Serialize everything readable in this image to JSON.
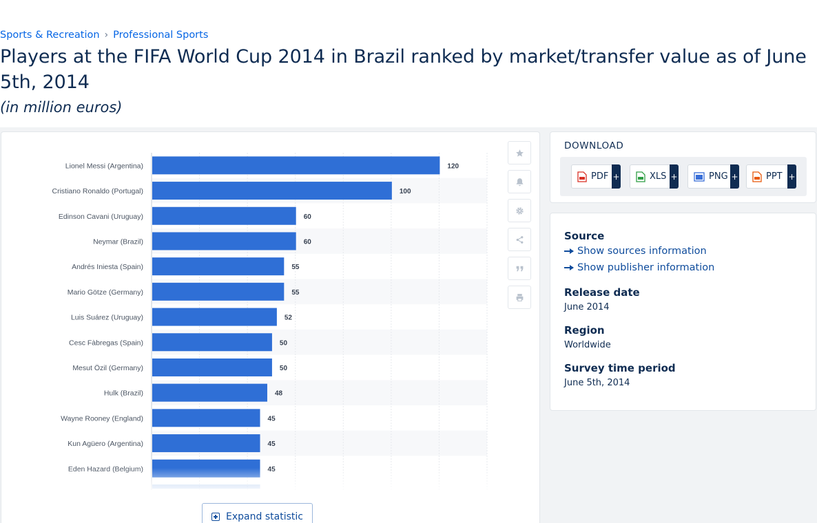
{
  "breadcrumb": [
    "Sports & Recreation",
    "Professional Sports"
  ],
  "title": "Players at the FIFA World Cup 2014 in Brazil ranked by market/transfer value as of June 5th, 2014",
  "subtitle": "(in million euros)",
  "expand_label": "Expand statistic",
  "download": {
    "title": "DOWNLOAD",
    "buttons": [
      {
        "label": "PDF",
        "icon": "pdf-file-icon",
        "color": "#d93025"
      },
      {
        "label": "XLS",
        "icon": "xls-file-icon",
        "color": "#2f9e44"
      },
      {
        "label": "PNG",
        "icon": "png-file-icon",
        "color": "#3a6fd8"
      },
      {
        "label": "PPT",
        "icon": "ppt-file-icon",
        "color": "#e8590c"
      }
    ],
    "plus": "+"
  },
  "tools": [
    "star-icon",
    "bell-icon",
    "gear-icon",
    "share-icon",
    "quote-icon",
    "print-icon"
  ],
  "info": {
    "source_label": "Source",
    "show_sources": "Show sources information",
    "show_publisher": "Show publisher information",
    "release_label": "Release date",
    "release_value": "June 2014",
    "region_label": "Region",
    "region_value": "Worldwide",
    "survey_label": "Survey time period",
    "survey_value": "June 5th, 2014"
  },
  "colors": {
    "bar": "#2f6fd6",
    "accent": "#0666e5",
    "navy": "#0f2c52"
  },
  "chart_data": {
    "type": "bar",
    "orientation": "horizontal",
    "categories": [
      "Lionel Messi (Argentina)",
      "Cristiano Ronaldo (Portugal)",
      "Edinson Cavani (Uruguay)",
      "Neymar (Brazil)",
      "Andrés Iniesta (Spain)",
      "Mario Götze (Germany)",
      "Luis Suárez (Uruguay)",
      "Cesc Fàbregas (Spain)",
      "Mesut Özil (Germany)",
      "Hulk (Brazil)",
      "Wayne Rooney (England)",
      "Kun Agüero (Argentina)",
      "Eden Hazard (Belgium)"
    ],
    "values": [
      120,
      100,
      60,
      60,
      55,
      55,
      52,
      50,
      50,
      48,
      45,
      45,
      45
    ],
    "xlim": [
      0,
      140
    ],
    "grid": true,
    "data_labels": true
  }
}
